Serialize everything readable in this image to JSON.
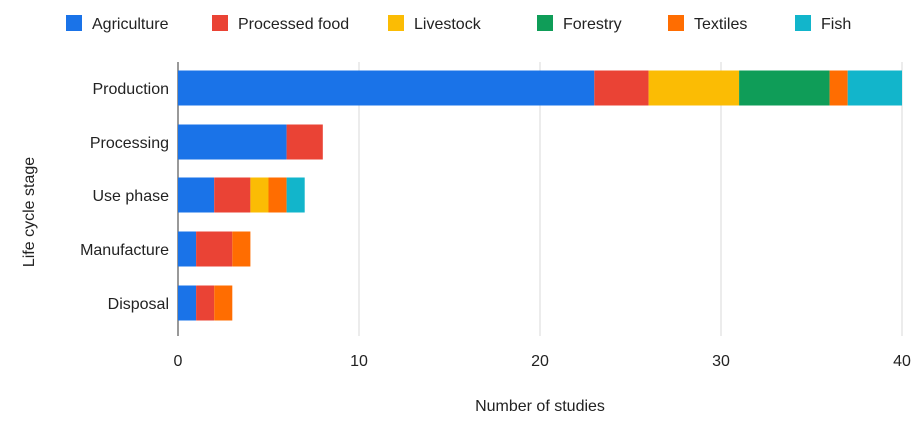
{
  "chart_data": {
    "type": "bar",
    "orientation": "horizontal",
    "stacked": true,
    "title": "",
    "xlabel": "Number of studies",
    "ylabel": "Life cycle stage",
    "xlim": [
      0,
      40
    ],
    "x_ticks": [
      "0",
      "10",
      "20",
      "30",
      "40"
    ],
    "grid": true,
    "legend_position": "top",
    "categories": [
      "Production",
      "Processing",
      "Use phase",
      "Manufacture",
      "Disposal"
    ],
    "series": [
      {
        "name": "Agriculture",
        "color": "#1a73e8",
        "values": [
          23,
          6,
          2,
          1,
          1
        ]
      },
      {
        "name": "Processed food",
        "color": "#ea4335",
        "values": [
          3,
          2,
          2,
          2,
          1
        ]
      },
      {
        "name": "Livestock",
        "color": "#fbbc04",
        "values": [
          5,
          0,
          1,
          0,
          0
        ]
      },
      {
        "name": "Forestry",
        "color": "#0f9d58",
        "values": [
          5,
          0,
          0,
          0,
          0
        ]
      },
      {
        "name": "Textiles",
        "color": "#ff6d01",
        "values": [
          1,
          0,
          1,
          1,
          1
        ]
      },
      {
        "name": "Fish",
        "color": "#12b5cb",
        "values": [
          3,
          0,
          1,
          0,
          0
        ]
      }
    ]
  }
}
